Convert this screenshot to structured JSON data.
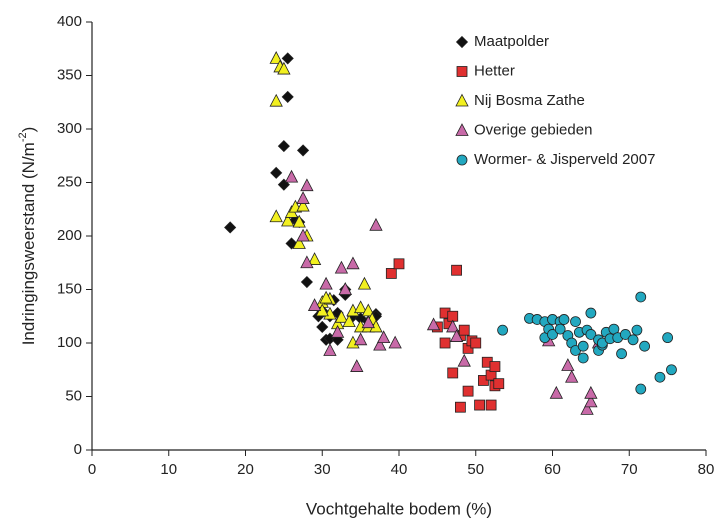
{
  "chart_data": {
    "type": "scatter",
    "xlabel": "Vochtgehalte bodem (%)",
    "ylabel": [
      "Indringingsweerstand (N/m",
      "-2",
      ")"
    ],
    "xlim": [
      0,
      80
    ],
    "xticks": [
      0,
      10,
      20,
      30,
      40,
      50,
      60,
      70,
      80
    ],
    "ylim": [
      0,
      400
    ],
    "yticks": [
      0,
      50,
      100,
      150,
      200,
      250,
      300,
      350,
      400
    ],
    "legend": "upper right",
    "series": [
      {
        "name": "Maatpolder",
        "color": "#111111",
        "marker": "diamond",
        "x": [
          18,
          24,
          25,
          25,
          25.5,
          25.5,
          26,
          26.5,
          27,
          27.5,
          28,
          29.5,
          30,
          30,
          30.5,
          31,
          31,
          31.5,
          32,
          32,
          33,
          33,
          34,
          35,
          36,
          37,
          37
        ],
        "values": [
          208,
          259,
          248,
          284,
          330,
          366,
          193,
          215,
          213,
          280,
          157,
          125,
          115,
          130,
          103,
          104,
          125,
          140,
          103,
          128,
          145,
          150,
          125,
          123,
          120,
          127,
          125
        ]
      },
      {
        "name": "Hetter",
        "color": "#e03030",
        "marker": "square",
        "x": [
          39,
          40,
          45,
          46,
          46,
          46.5,
          47,
          47.5,
          48,
          48,
          48.5,
          49,
          49,
          49.5,
          50,
          50.5,
          51,
          51.5,
          52,
          52,
          52.5,
          52.5,
          53,
          47
        ],
        "values": [
          165,
          174,
          115,
          128,
          100,
          118,
          72,
          168,
          40,
          107,
          112,
          55,
          95,
          102,
          100,
          42,
          65,
          82,
          42,
          70,
          78,
          60,
          62,
          125
        ]
      },
      {
        "name": "Nij Bosma Zathe",
        "color": "#f2f020",
        "marker": "triangle",
        "x": [
          24,
          24,
          24,
          24.5,
          25,
          25.5,
          26,
          26.5,
          27,
          27,
          27.5,
          28,
          29,
          30,
          31,
          31,
          32,
          32.5,
          33,
          33.5,
          34,
          34,
          35,
          35,
          35.5,
          36,
          36,
          36.5,
          37,
          30,
          30.5
        ],
        "values": [
          366,
          326,
          218,
          358,
          356,
          214,
          222,
          227,
          193,
          213,
          228,
          200,
          178,
          138,
          127,
          141,
          118,
          124,
          150,
          120,
          130,
          100,
          133,
          115,
          155,
          115,
          130,
          122,
          115,
          130,
          142
        ]
      },
      {
        "name": "Overige gebieden",
        "color": "#c86aa8",
        "marker": "triangle",
        "x": [
          26,
          27.5,
          27.5,
          28,
          28,
          29,
          30.5,
          31,
          32,
          32.5,
          33,
          34,
          34.5,
          35,
          36,
          37,
          37.5,
          38,
          39.5,
          44.5,
          47,
          47.5,
          48.5,
          59.5,
          60.5,
          62,
          62.5,
          64.5,
          65,
          65,
          66
        ],
        "values": [
          255,
          235,
          200,
          247,
          175,
          135,
          155,
          93,
          110,
          170,
          150,
          174,
          78,
          103,
          119,
          210,
          98,
          105,
          100,
          117,
          115,
          106,
          83,
          102,
          53,
          79,
          68,
          38,
          45,
          53,
          100
        ]
      },
      {
        "name": "Wormer- & Jisperveld 2007",
        "color": "#22a8c0",
        "marker": "circle",
        "x": [
          53.5,
          57,
          58,
          59,
          59,
          59.5,
          60,
          60,
          61,
          61,
          61.5,
          62,
          62.5,
          63,
          63,
          63.5,
          64,
          64,
          64.5,
          65,
          65,
          66,
          66,
          66.5,
          66.5,
          67,
          67.5,
          68,
          68.5,
          69,
          69.5,
          70.5,
          71,
          71.5,
          71.5,
          72,
          74,
          75,
          75.5
        ],
        "values": [
          112,
          123,
          122,
          105,
          120,
          113,
          108,
          122,
          120,
          113,
          122,
          107,
          100,
          93,
          120,
          110,
          86,
          97,
          112,
          108,
          128,
          93,
          103,
          98,
          100,
          110,
          104,
          113,
          105,
          90,
          108,
          103,
          112,
          143,
          57,
          97,
          68,
          105,
          75
        ]
      }
    ]
  }
}
